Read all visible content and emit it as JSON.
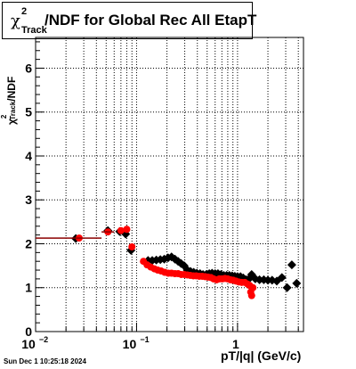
{
  "chart_data": {
    "type": "scatter",
    "title_symbol": "χ",
    "title_sup": "2",
    "title_sub": "Track",
    "title": "/NDF for Global Rec All EtapT",
    "xlabel": "pT/|q| (GeV/c)",
    "ylabel_symbol": "χ",
    "ylabel_sup": "2",
    "ylabel_sub": "Track",
    "ylabel_tail": "/NDF",
    "x_scale": "log",
    "xlim": [
      0.01,
      4.5
    ],
    "ylim": [
      0,
      6.7
    ],
    "x_tick_labels": [
      "10",
      "10",
      "1"
    ],
    "x_tick_exponents": [
      "−2",
      "−1",
      ""
    ],
    "y_ticks": [
      0,
      1,
      2,
      3,
      4,
      5,
      6
    ],
    "grid": true,
    "series": [
      {
        "marker": "diamond",
        "color": "#000000",
        "points": [
          [
            0.025,
            2.12
          ],
          [
            0.052,
            2.3
          ],
          [
            0.068,
            2.28
          ],
          [
            0.078,
            2.22
          ],
          [
            0.088,
            1.85
          ],
          [
            0.13,
            1.62
          ],
          [
            0.143,
            1.62
          ],
          [
            0.157,
            1.63
          ],
          [
            0.172,
            1.64
          ],
          [
            0.188,
            1.65
          ],
          [
            0.205,
            1.68
          ],
          [
            0.222,
            1.7
          ],
          [
            0.24,
            1.65
          ],
          [
            0.258,
            1.6
          ],
          [
            0.276,
            1.55
          ],
          [
            0.296,
            1.5
          ],
          [
            0.318,
            1.4
          ],
          [
            0.342,
            1.37
          ],
          [
            0.368,
            1.35
          ],
          [
            0.395,
            1.33
          ],
          [
            0.425,
            1.32
          ],
          [
            0.455,
            1.3
          ],
          [
            0.49,
            1.3
          ],
          [
            0.525,
            1.32
          ],
          [
            0.56,
            1.33
          ],
          [
            0.6,
            1.32
          ],
          [
            0.64,
            1.32
          ],
          [
            0.685,
            1.3
          ],
          [
            0.73,
            1.28
          ],
          [
            0.78,
            1.28
          ],
          [
            0.83,
            1.28
          ],
          [
            0.885,
            1.27
          ],
          [
            0.94,
            1.26
          ],
          [
            1.0,
            1.25
          ],
          [
            1.07,
            1.25
          ],
          [
            1.14,
            1.22
          ],
          [
            1.22,
            1.18
          ],
          [
            1.3,
            1.2
          ],
          [
            1.38,
            1.3
          ],
          [
            1.5,
            1.2
          ],
          [
            1.65,
            1.18
          ],
          [
            1.82,
            1.18
          ],
          [
            2.0,
            1.17
          ],
          [
            2.2,
            1.17
          ],
          [
            2.45,
            1.15
          ],
          [
            2.75,
            1.23
          ],
          [
            3.1,
            1.0
          ],
          [
            3.45,
            1.52
          ],
          [
            3.85,
            1.1
          ]
        ]
      },
      {
        "marker": "circle",
        "color": "#ff0000",
        "points": [
          [
            0.027,
            2.13
          ],
          [
            0.052,
            2.27
          ],
          [
            0.07,
            2.3
          ],
          [
            0.08,
            2.33
          ],
          [
            0.09,
            1.93
          ],
          [
            0.117,
            1.6
          ],
          [
            0.127,
            1.52
          ],
          [
            0.138,
            1.47
          ],
          [
            0.15,
            1.43
          ],
          [
            0.162,
            1.4
          ],
          [
            0.175,
            1.38
          ],
          [
            0.19,
            1.35
          ],
          [
            0.206,
            1.33
          ],
          [
            0.222,
            1.33
          ],
          [
            0.24,
            1.32
          ],
          [
            0.258,
            1.32
          ],
          [
            0.277,
            1.3
          ],
          [
            0.297,
            1.3
          ],
          [
            0.318,
            1.29
          ],
          [
            0.34,
            1.28
          ],
          [
            0.365,
            1.27
          ],
          [
            0.39,
            1.27
          ],
          [
            0.418,
            1.26
          ],
          [
            0.447,
            1.26
          ],
          [
            0.478,
            1.25
          ],
          [
            0.51,
            1.24
          ],
          [
            0.545,
            1.23
          ],
          [
            0.58,
            1.2
          ],
          [
            0.62,
            1.18
          ],
          [
            0.66,
            1.2
          ],
          [
            0.705,
            1.2
          ],
          [
            0.75,
            1.21
          ],
          [
            0.8,
            1.2
          ],
          [
            0.85,
            1.18
          ],
          [
            0.905,
            1.17
          ],
          [
            0.965,
            1.15
          ],
          [
            1.03,
            1.13
          ],
          [
            1.1,
            1.12
          ],
          [
            1.18,
            1.12
          ],
          [
            1.26,
            1.08
          ],
          [
            1.32,
            1.05
          ],
          [
            1.35,
            0.9
          ],
          [
            1.38,
            0.82
          ],
          [
            1.42,
            1.0
          ]
        ]
      }
    ]
  },
  "footer": {
    "timestamp": "Sun Dec  1 10:25:18 2024"
  }
}
